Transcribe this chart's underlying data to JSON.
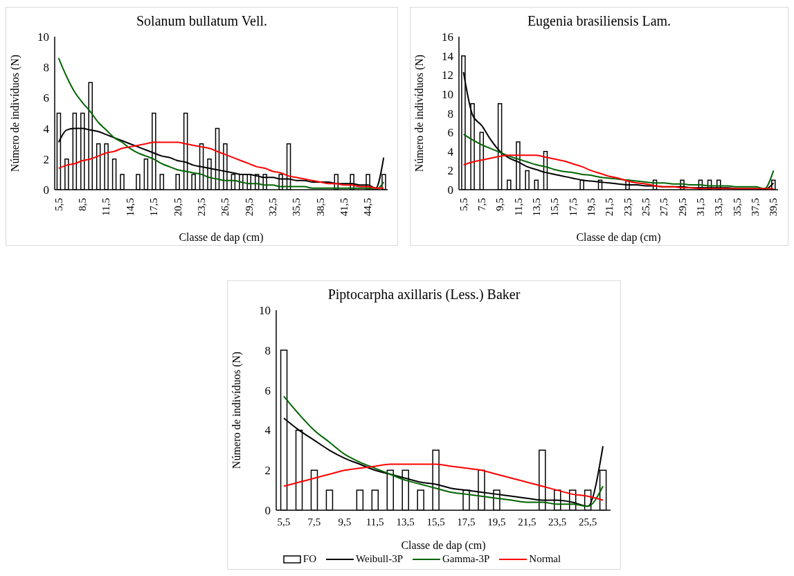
{
  "chart_data": [
    {
      "type": "bar",
      "title": "Solanum bullatum Vell.",
      "xlabel": "Classe de dap (cm)",
      "ylabel": "Número de indivíduos (N)",
      "categories": [
        "5,5",
        null,
        null,
        "8,5",
        null,
        null,
        "11,5",
        null,
        null,
        "14,5",
        null,
        null,
        "17,5",
        null,
        null,
        "20,5",
        null,
        null,
        "23,5",
        null,
        null,
        "26,5",
        null,
        null,
        "29,5",
        null,
        null,
        "32,5",
        null,
        null,
        "35,5",
        null,
        null,
        "38,5",
        null,
        null,
        "41,5",
        null,
        null,
        "44,5",
        null,
        null
      ],
      "series": [
        {
          "color": "#ffffff",
          "values": [
            5,
            2,
            5,
            5,
            7,
            3,
            3,
            2,
            1,
            0,
            1,
            2,
            5,
            1,
            0,
            1,
            5,
            1,
            3,
            2,
            4,
            3,
            1,
            1,
            1,
            1,
            1,
            0,
            1,
            3,
            0,
            0,
            0,
            0,
            0,
            1,
            0,
            1,
            0,
            1,
            0,
            1
          ]
        },
        {
          "type": "line",
          "color": "#000000",
          "values": [
            3.1,
            3.9,
            4.0,
            4.0,
            3.9,
            3.8,
            3.6,
            3.4,
            3.2,
            3.0,
            2.8,
            2.6,
            2.4,
            2.2,
            2.1,
            1.9,
            1.8,
            1.6,
            1.5,
            1.4,
            1.3,
            1.2,
            1.1,
            1.0,
            1.0,
            0.9,
            0.8,
            0.8,
            0.7,
            0.7,
            0.6,
            0.6,
            0.5,
            0.5,
            0.5,
            0.4,
            0.4,
            0.4,
            0.3,
            0.3,
            0.1,
            2.1
          ]
        },
        {
          "type": "line",
          "color": "#006400",
          "values": [
            8.6,
            7.4,
            6.4,
            5.7,
            5.1,
            4.4,
            3.9,
            3.4,
            3.1,
            2.7,
            2.4,
            2.2,
            2.0,
            1.7,
            1.5,
            1.3,
            1.2,
            1.1,
            1.0,
            0.8,
            0.7,
            0.6,
            0.6,
            0.5,
            0.4,
            0.4,
            0.3,
            0.3,
            0.2,
            0.2,
            0.2,
            0.2,
            0.1,
            0.1,
            0.1,
            0.1,
            0.1,
            0.1,
            0.1,
            0.1,
            0.0,
            0.5
          ]
        },
        {
          "type": "line",
          "color": "#ff0000",
          "values": [
            1.4,
            1.6,
            1.7,
            1.9,
            2.0,
            2.2,
            2.4,
            2.5,
            2.7,
            2.8,
            2.9,
            3.0,
            3.1,
            3.1,
            3.1,
            3.1,
            3.0,
            2.9,
            2.8,
            2.7,
            2.5,
            2.3,
            2.1,
            1.9,
            1.7,
            1.5,
            1.4,
            1.2,
            1.1,
            0.9,
            0.8,
            0.7,
            0.6,
            0.5,
            0.4,
            0.4,
            0.3,
            0.3,
            0.2,
            0.2,
            0.1,
            0.1
          ]
        }
      ],
      "ylim": [
        0,
        10
      ],
      "yticks": [
        0,
        2,
        4,
        6,
        8,
        10
      ],
      "marker": "none",
      "legend": false
    },
    {
      "type": "bar",
      "title": "Eugenia brasiliensis Lam.",
      "xlabel": "Classe de dap (cm)",
      "ylabel": "Número de indivíduos (N)",
      "categories": [
        "5,5",
        null,
        "7,5",
        null,
        "9,5",
        null,
        "11,5",
        null,
        "13,5",
        null,
        "15,5",
        null,
        "17,5",
        null,
        "19,5",
        null,
        "21,5",
        null,
        "23,5",
        null,
        "25,5",
        null,
        "27,5",
        null,
        "29,5",
        null,
        "31,5",
        null,
        "33,5",
        null,
        "35,5",
        null,
        "37,5",
        null,
        "39,5"
      ],
      "series": [
        {
          "color": "#ffffff",
          "values": [
            14,
            9,
            6,
            0,
            9,
            1,
            5,
            2,
            1,
            4,
            0,
            0,
            0,
            1,
            0,
            1,
            0,
            0,
            1,
            0,
            0,
            1,
            0,
            0,
            1,
            0,
            1,
            1,
            1,
            0,
            0,
            0,
            0,
            0,
            1
          ]
        },
        {
          "type": "line",
          "color": "#000000",
          "values": [
            12.3,
            7.8,
            6.7,
            5.2,
            4.0,
            3.3,
            2.9,
            2.4,
            2.1,
            1.8,
            1.6,
            1.4,
            1.2,
            1.0,
            0.9,
            0.8,
            0.7,
            0.6,
            0.5,
            0.5,
            0.4,
            0.4,
            0.3,
            0.3,
            0.3,
            0.2,
            0.2,
            0.2,
            0.2,
            0.2,
            0.1,
            0.1,
            0.1,
            0.0,
            0.7
          ]
        },
        {
          "type": "line",
          "color": "#006400",
          "values": [
            5.8,
            5.2,
            4.7,
            4.3,
            3.9,
            3.5,
            3.2,
            2.9,
            2.6,
            2.4,
            2.1,
            1.9,
            1.8,
            1.6,
            1.5,
            1.3,
            1.2,
            1.1,
            1.0,
            0.9,
            0.8,
            0.7,
            0.7,
            0.6,
            0.6,
            0.5,
            0.5,
            0.4,
            0.4,
            0.4,
            0.3,
            0.3,
            0.3,
            0.1,
            2.0
          ]
        },
        {
          "type": "line",
          "color": "#ff0000",
          "values": [
            2.6,
            2.9,
            3.1,
            3.3,
            3.5,
            3.6,
            3.6,
            3.6,
            3.6,
            3.4,
            3.2,
            3.0,
            2.7,
            2.4,
            2.0,
            1.7,
            1.4,
            1.2,
            0.9,
            0.7,
            0.6,
            0.4,
            0.3,
            0.3,
            0.2,
            0.2,
            0.1,
            0.1,
            0.1,
            0.1,
            0.1,
            0.1,
            0.1,
            0.1,
            0.1
          ]
        }
      ],
      "ylim": [
        0,
        16
      ],
      "yticks": [
        0,
        2,
        4,
        6,
        8,
        10,
        12,
        14,
        16
      ],
      "marker": "none",
      "legend": false
    },
    {
      "type": "bar",
      "title": "Piptocarpha axillaris (Less.) Baker",
      "xlabel": "Classe de dap (cm)",
      "ylabel": "Número de indivíduos (N)",
      "categories": [
        "5,5",
        null,
        "7,5",
        null,
        "9,5",
        null,
        "11,5",
        null,
        "13,5",
        null,
        "15,5",
        null,
        "17,5",
        null,
        "19,5",
        null,
        "21,5",
        null,
        "23,5",
        null,
        "25,5",
        null
      ],
      "series": [
        {
          "name": "FO",
          "color": "#ffffff",
          "values": [
            8,
            4,
            2,
            1,
            0,
            1,
            1,
            2,
            2,
            1,
            3,
            0,
            1,
            2,
            1,
            0,
            0,
            3,
            1,
            1,
            1,
            2
          ]
        },
        {
          "name": "Weibull-3P",
          "type": "line",
          "color": "#000000",
          "values": [
            4.6,
            4.0,
            3.5,
            3.0,
            2.6,
            2.3,
            2.0,
            1.8,
            1.6,
            1.4,
            1.3,
            1.1,
            1.0,
            0.9,
            0.8,
            0.7,
            0.6,
            0.5,
            0.5,
            0.4,
            0.2,
            3.2
          ]
        },
        {
          "name": "Gamma-3P",
          "type": "line",
          "color": "#006400",
          "values": [
            5.7,
            4.8,
            4.0,
            3.4,
            2.8,
            2.4,
            2.1,
            1.8,
            1.5,
            1.3,
            1.1,
            0.9,
            0.8,
            0.7,
            0.6,
            0.5,
            0.4,
            0.4,
            0.3,
            0.3,
            0.2,
            1.2
          ]
        },
        {
          "name": "Normal",
          "type": "line",
          "color": "#ff0000",
          "values": [
            1.2,
            1.4,
            1.6,
            1.8,
            2.0,
            2.1,
            2.2,
            2.3,
            2.3,
            2.3,
            2.3,
            2.2,
            2.1,
            2.0,
            1.8,
            1.6,
            1.4,
            1.2,
            1.0,
            0.8,
            0.7,
            0.5
          ]
        }
      ],
      "ylim": [
        0,
        10
      ],
      "yticks": [
        0,
        2,
        4,
        6,
        8,
        10
      ],
      "marker": "none",
      "legend": "bottom"
    }
  ]
}
